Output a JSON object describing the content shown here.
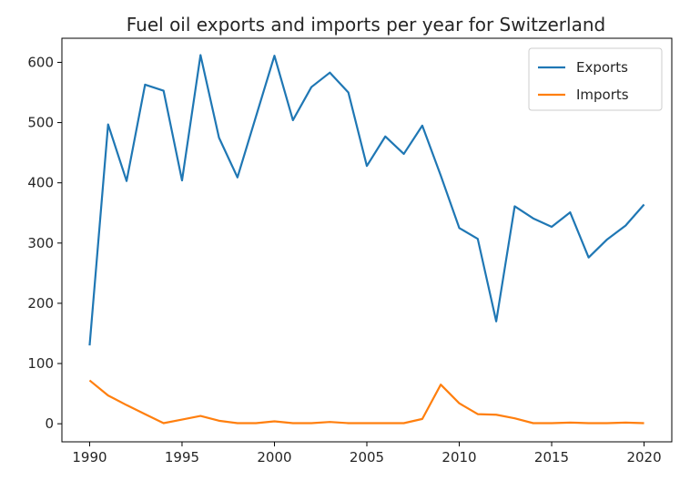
{
  "chart_data": {
    "type": "line",
    "title": "Fuel oil exports and imports per year for Switzerland",
    "xlabel": "",
    "ylabel": "",
    "xlim": [
      1988.5,
      2021.5
    ],
    "ylim": [
      -30,
      640
    ],
    "x": [
      1990,
      1991,
      1992,
      1993,
      1994,
      1995,
      1996,
      1997,
      1998,
      1999,
      2000,
      2001,
      2002,
      2003,
      2004,
      2005,
      2006,
      2007,
      2008,
      2009,
      2010,
      2011,
      2012,
      2013,
      2014,
      2015,
      2016,
      2017,
      2018,
      2019,
      2020
    ],
    "x_ticks": [
      1990,
      1995,
      2000,
      2005,
      2010,
      2015,
      2020
    ],
    "y_ticks": [
      0,
      100,
      200,
      300,
      400,
      500,
      600
    ],
    "legend_position": "top-right",
    "grid": false,
    "series": [
      {
        "name": "Exports",
        "color": "#1f77b4",
        "values": [
          130,
          497,
          403,
          563,
          553,
          404,
          612,
          475,
          409,
          510,
          611,
          504,
          559,
          583,
          550,
          428,
          477,
          448,
          495,
          412,
          325,
          307,
          170,
          361,
          341,
          327,
          351,
          276,
          306,
          329,
          364
        ]
      },
      {
        "name": "Imports",
        "color": "#ff7f0e",
        "values": [
          72,
          47,
          31,
          16,
          1,
          7,
          13,
          5,
          1,
          1,
          4,
          1,
          1,
          3,
          1,
          1,
          1,
          1,
          8,
          65,
          34,
          16,
          15,
          9,
          1,
          1,
          2,
          1,
          1,
          2,
          1
        ]
      }
    ]
  }
}
